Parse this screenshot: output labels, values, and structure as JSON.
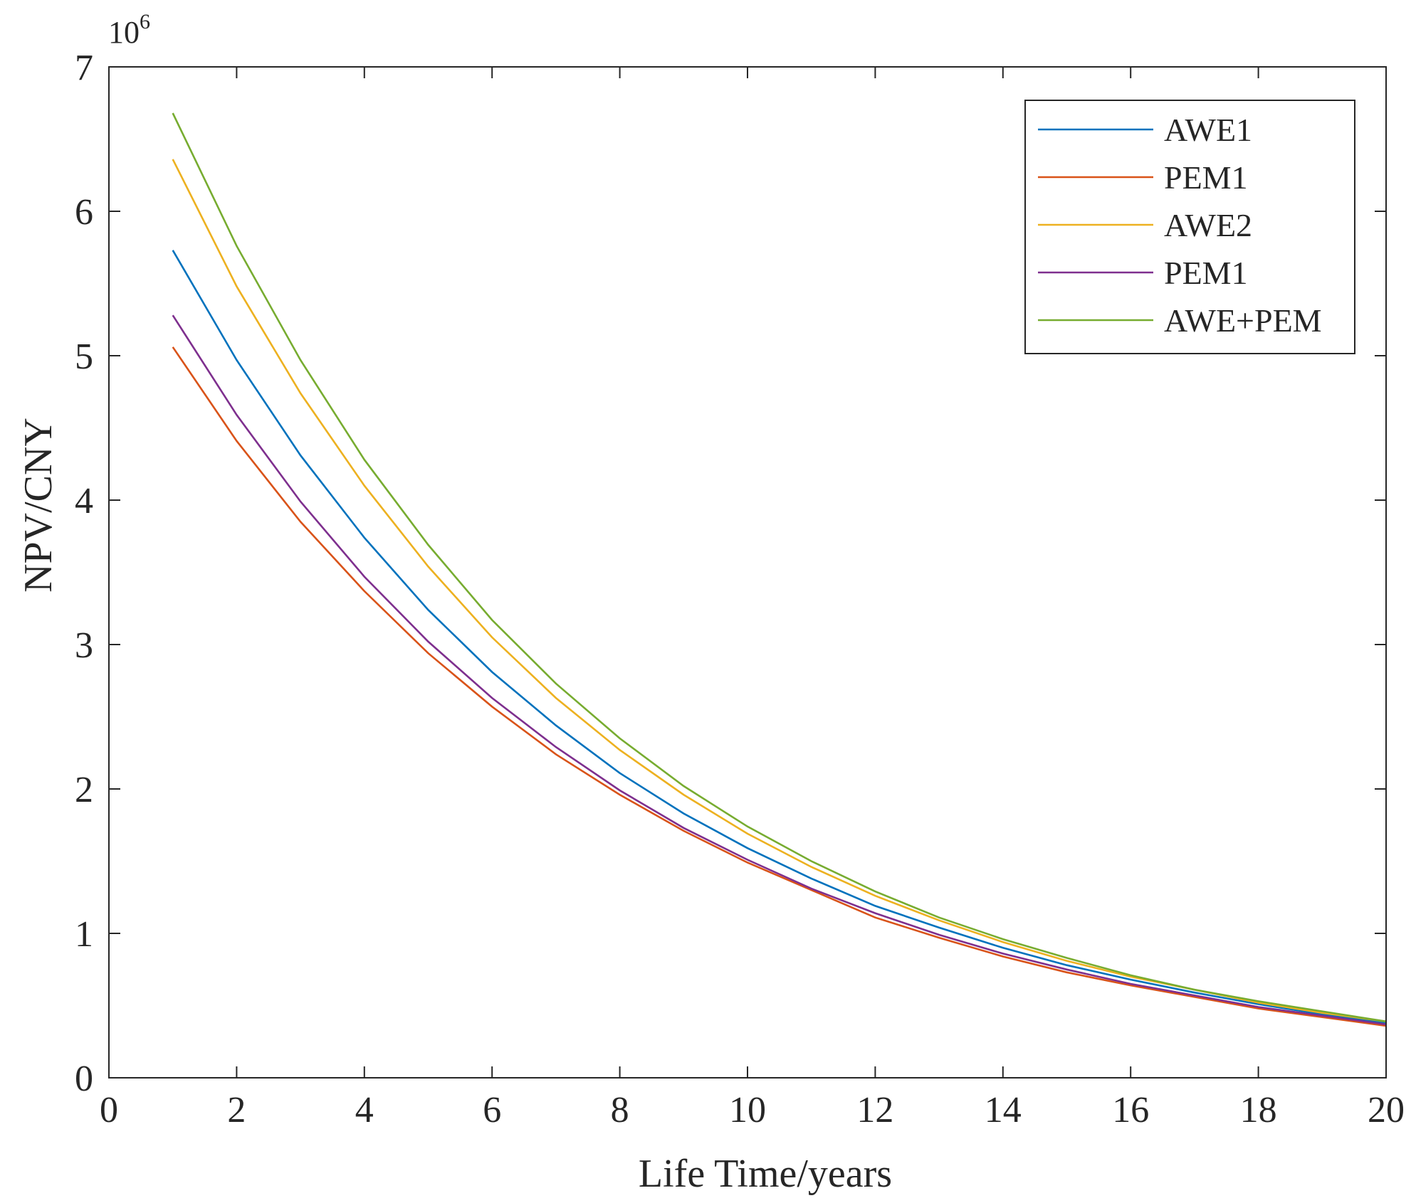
{
  "chart_data": {
    "type": "line",
    "xlabel": "Life Time/years",
    "ylabel": "NPV/CNY",
    "y_exponent_label": "10",
    "y_exponent_power": "6",
    "xlim": [
      0,
      20
    ],
    "ylim": [
      0,
      7
    ],
    "x_ticks": [
      "0",
      "2",
      "4",
      "6",
      "8",
      "10",
      "12",
      "14",
      "16",
      "18",
      "20"
    ],
    "y_ticks": [
      "0",
      "1",
      "2",
      "3",
      "4",
      "5",
      "6",
      "7"
    ],
    "grid": false,
    "legend_position": "top-right",
    "x": [
      1,
      2,
      3,
      4,
      5,
      6,
      7,
      8,
      9,
      10,
      11,
      12,
      13,
      14,
      15,
      16,
      17,
      18,
      19,
      20
    ],
    "series": [
      {
        "name": "AWE1",
        "color": "#0072BD",
        "values": [
          5.73,
          4.97,
          4.31,
          3.74,
          3.24,
          2.81,
          2.44,
          2.11,
          1.83,
          1.59,
          1.38,
          1.19,
          1.04,
          0.9,
          0.78,
          0.68,
          0.59,
          0.51,
          0.44,
          0.38
        ]
      },
      {
        "name": "PEM1",
        "color": "#D95319",
        "values": [
          5.06,
          4.41,
          3.85,
          3.37,
          2.94,
          2.57,
          2.24,
          1.96,
          1.71,
          1.49,
          1.3,
          1.11,
          0.97,
          0.84,
          0.73,
          0.64,
          0.56,
          0.48,
          0.42,
          0.36
        ]
      },
      {
        "name": "AWE2",
        "color": "#EDB120",
        "values": [
          6.36,
          5.48,
          4.74,
          4.1,
          3.54,
          3.05,
          2.63,
          2.27,
          1.96,
          1.69,
          1.46,
          1.26,
          1.09,
          0.94,
          0.81,
          0.7,
          0.61,
          0.52,
          0.45,
          0.39
        ]
      },
      {
        "name": "PEM1",
        "color": "#7E2F8E",
        "values": [
          5.28,
          4.59,
          3.99,
          3.47,
          3.02,
          2.63,
          2.29,
          1.99,
          1.73,
          1.51,
          1.31,
          1.14,
          0.99,
          0.86,
          0.75,
          0.65,
          0.57,
          0.49,
          0.43,
          0.37
        ]
      },
      {
        "name": "AWE+PEM",
        "color": "#77AC30",
        "values": [
          6.68,
          5.76,
          4.97,
          4.28,
          3.69,
          3.17,
          2.73,
          2.35,
          2.02,
          1.74,
          1.5,
          1.29,
          1.11,
          0.96,
          0.83,
          0.71,
          0.61,
          0.53,
          0.46,
          0.39
        ]
      }
    ]
  }
}
